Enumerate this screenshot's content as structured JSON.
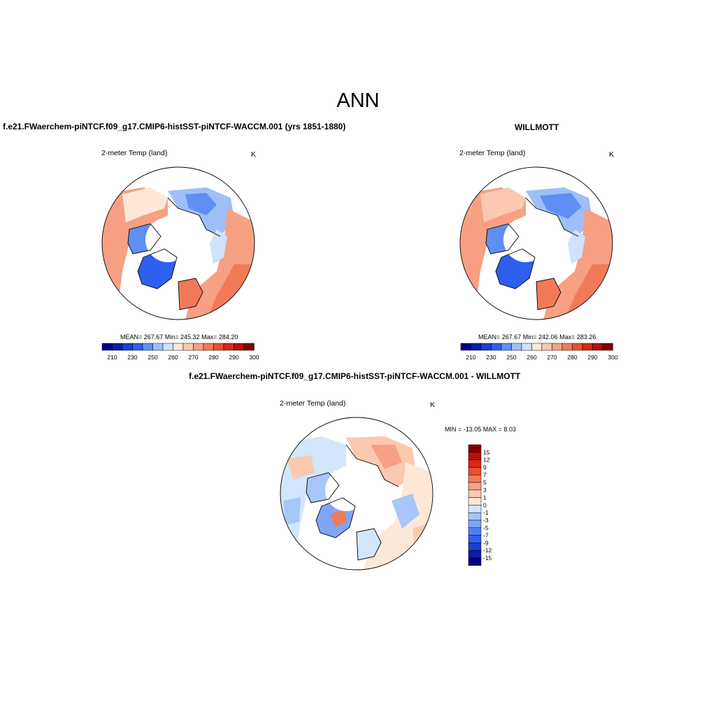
{
  "figure": {
    "title": "ANN"
  },
  "colors": {
    "abs_scale": [
      "#00008b",
      "#0a1fa8",
      "#1a3fd0",
      "#2f5ff0",
      "#5f8ff5",
      "#9fbff8",
      "#cfe3fb",
      "#fde8d8",
      "#fbc9b0",
      "#f7a083",
      "#f27a58",
      "#e85130",
      "#d92815",
      "#b51208",
      "#800000"
    ],
    "diff_scale": [
      "#00008b",
      "#0a1fa8",
      "#1a3fd0",
      "#2f5ff0",
      "#4f7ff2",
      "#7fa5f6",
      "#a8c6f9",
      "#d3e6fc",
      "#fde8d8",
      "#fbc9b0",
      "#f7a083",
      "#f27a58",
      "#e85130",
      "#d92815",
      "#b51208",
      "#800000"
    ]
  },
  "panels": {
    "left": {
      "title": "f.e21.FWaerchem-piNTCF.f09_g17.CMIP6-histSST-piNTCF-WACCM.001 (yrs 1851-1880)",
      "variable": "2-meter Temp (land)",
      "units": "K",
      "stats": "MEAN= 267.67   Min= 245.32   Max= 284.20",
      "colorbar_labels": [
        "210",
        "230",
        "250",
        "260",
        "270",
        "280",
        "290",
        "300"
      ]
    },
    "right": {
      "title": "WILLMOTT",
      "variable": "2-meter Temp (land)",
      "units": "K",
      "stats": "MEAN= 267.67   Min= 242.06   Max= 283.26",
      "colorbar_labels": [
        "210",
        "230",
        "250",
        "260",
        "270",
        "280",
        "290",
        "300"
      ]
    },
    "bottom": {
      "title": "f.e21.FWaerchem-piNTCF.f09_g17.CMIP6-histSST-piNTCF-WACCM.001 - WILLMOTT",
      "variable": "2-meter Temp (land)",
      "units": "K",
      "stats": "MIN = -13.05 MAX =   8.03",
      "colorbar_labels": [
        "15",
        "12",
        "9",
        "7",
        "5",
        "3",
        "1",
        "0",
        "-1",
        "-3",
        "-5",
        "-7",
        "-9",
        "-12",
        "-15"
      ]
    }
  }
}
